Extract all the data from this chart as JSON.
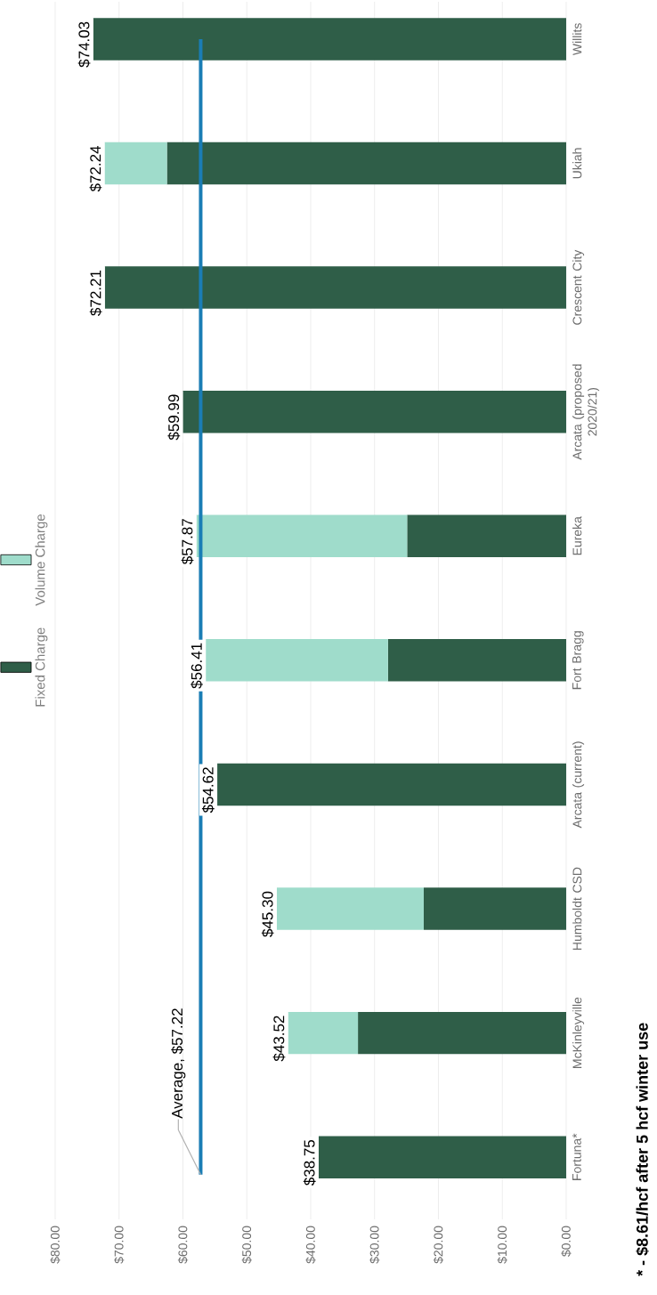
{
  "chart_data": {
    "type": "bar",
    "stacked": true,
    "orientation": "horizontal",
    "categories": [
      "Willits",
      "Ukiah",
      "Crescent City",
      "Arcata (proposed 2020/21)",
      "Eureka",
      "Fort Bragg",
      "Arcata (current)",
      "Humboldt CSD",
      "McKinleyville",
      "Fortuna*"
    ],
    "series": [
      {
        "name": "Fixed Charge",
        "color": "#2f5e48",
        "values": [
          74.03,
          62.5,
          72.21,
          59.99,
          24.9,
          27.9,
          54.62,
          22.3,
          32.6,
          38.75
        ]
      },
      {
        "name": "Volume Charge",
        "color": "#9fdccb",
        "values": [
          null,
          9.74,
          null,
          null,
          32.97,
          28.51,
          null,
          23.0,
          10.92,
          null
        ]
      }
    ],
    "totals": [
      "$74.03",
      "$72.24",
      "$72.21",
      "$59.99",
      "$57.87",
      "$56.41",
      "$54.62",
      "$45.30",
      "$43.52",
      "$38.75"
    ],
    "xlim": [
      80,
      0
    ],
    "xticks": [
      {
        "value": 0,
        "label": "$0.00"
      },
      {
        "value": 10,
        "label": "$10.00"
      },
      {
        "value": 20,
        "label": "$20.00"
      },
      {
        "value": 30,
        "label": "$30.00"
      },
      {
        "value": 40,
        "label": "$40.00"
      },
      {
        "value": 50,
        "label": "$50.00"
      },
      {
        "value": 60,
        "label": "$60.00"
      },
      {
        "value": 70,
        "label": "$70.00"
      },
      {
        "value": 80,
        "label": "$80.00"
      }
    ],
    "grid": "x",
    "legend": "left",
    "ref_lines": [
      {
        "axis": "x",
        "value": 57.22,
        "label": "Average, $57.22",
        "color": "#1a7db5"
      }
    ],
    "annotations": [
      "* - $8.61/hcf after 5 hcf winter use"
    ]
  }
}
